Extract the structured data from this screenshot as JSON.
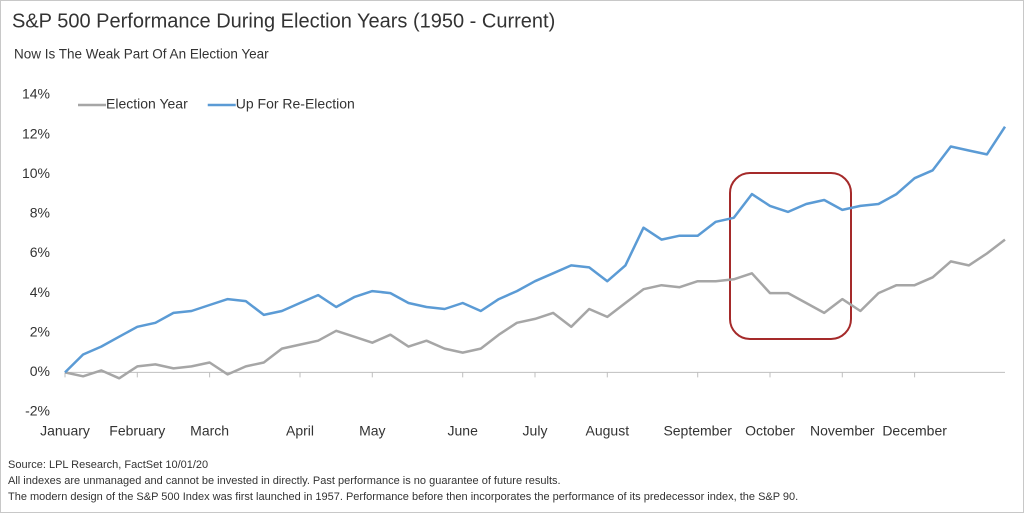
{
  "chart_data": {
    "type": "line",
    "title": "S&P 500 Performance During Election Years (1950 - Current)",
    "subtitle": "Now Is The Weak Part Of An Election Year",
    "categories": [
      "January",
      null,
      null,
      null,
      "February",
      null,
      null,
      null,
      "March",
      null,
      null,
      null,
      null,
      "April",
      null,
      null,
      null,
      "May",
      null,
      null,
      null,
      null,
      "June",
      null,
      null,
      null,
      "July",
      null,
      null,
      null,
      "August",
      null,
      null,
      null,
      null,
      "September",
      null,
      null,
      null,
      "October",
      null,
      null,
      null,
      "November",
      null,
      null,
      null,
      "December",
      null,
      null,
      null,
      null,
      null
    ],
    "series": [
      {
        "name": "Election Year",
        "color": "#a6a6a6",
        "values": [
          0,
          -0.2,
          0.1,
          -0.3,
          0.3,
          0.4,
          0.2,
          0.3,
          0.5,
          -0.1,
          0.3,
          0.5,
          1.2,
          1.4,
          1.6,
          2.1,
          1.8,
          1.5,
          1.9,
          1.3,
          1.6,
          1.2,
          1.0,
          1.2,
          1.9,
          2.5,
          2.7,
          3.0,
          2.3,
          3.2,
          2.8,
          3.5,
          4.2,
          4.4,
          4.3,
          4.6,
          4.6,
          4.7,
          5.0,
          4.0,
          4.0,
          3.5,
          3.0,
          3.7,
          3.1,
          4.0,
          4.4,
          4.4,
          4.8,
          5.6,
          5.4,
          6.0,
          6.7
        ]
      },
      {
        "name": "Up For Re-Election",
        "color": "#5b9bd5",
        "values": [
          0,
          0.9,
          1.3,
          1.8,
          2.3,
          2.5,
          3.0,
          3.1,
          3.4,
          3.7,
          3.6,
          2.9,
          3.1,
          3.5,
          3.9,
          3.3,
          3.8,
          4.1,
          4.0,
          3.5,
          3.3,
          3.2,
          3.5,
          3.1,
          3.7,
          4.1,
          4.6,
          5.0,
          5.4,
          5.3,
          4.6,
          5.4,
          7.3,
          6.7,
          6.9,
          6.9,
          7.6,
          7.8,
          9.0,
          8.4,
          8.1,
          8.5,
          8.7,
          8.2,
          8.4,
          8.5,
          9.0,
          9.8,
          10.2,
          11.4,
          11.2,
          11.0,
          12.4
        ]
      }
    ],
    "ylim": [
      -2,
      14
    ],
    "yticks": [
      {
        "value": -2,
        "label": "-2%"
      },
      {
        "value": 0,
        "label": "0%"
      },
      {
        "value": 2,
        "label": "2%"
      },
      {
        "value": 4,
        "label": "4%"
      },
      {
        "value": 6,
        "label": "6%"
      },
      {
        "value": 8,
        "label": "8%"
      },
      {
        "value": 10,
        "label": "10%"
      },
      {
        "value": 12,
        "label": "12%"
      },
      {
        "value": 14,
        "label": "14%"
      }
    ],
    "grid": false,
    "legend": "top-left",
    "notes": [
      "Source:  LPL Research,  FactSet 10/01/20",
      "All indexes are unmanaged and cannot be invested in directly. Past performance is no guarantee of future results.",
      "The modern design of the S&P 500  Index was first launched in 1957.  Performance before then incorporates the performance of its predecessor index, the S&P 90."
    ]
  }
}
